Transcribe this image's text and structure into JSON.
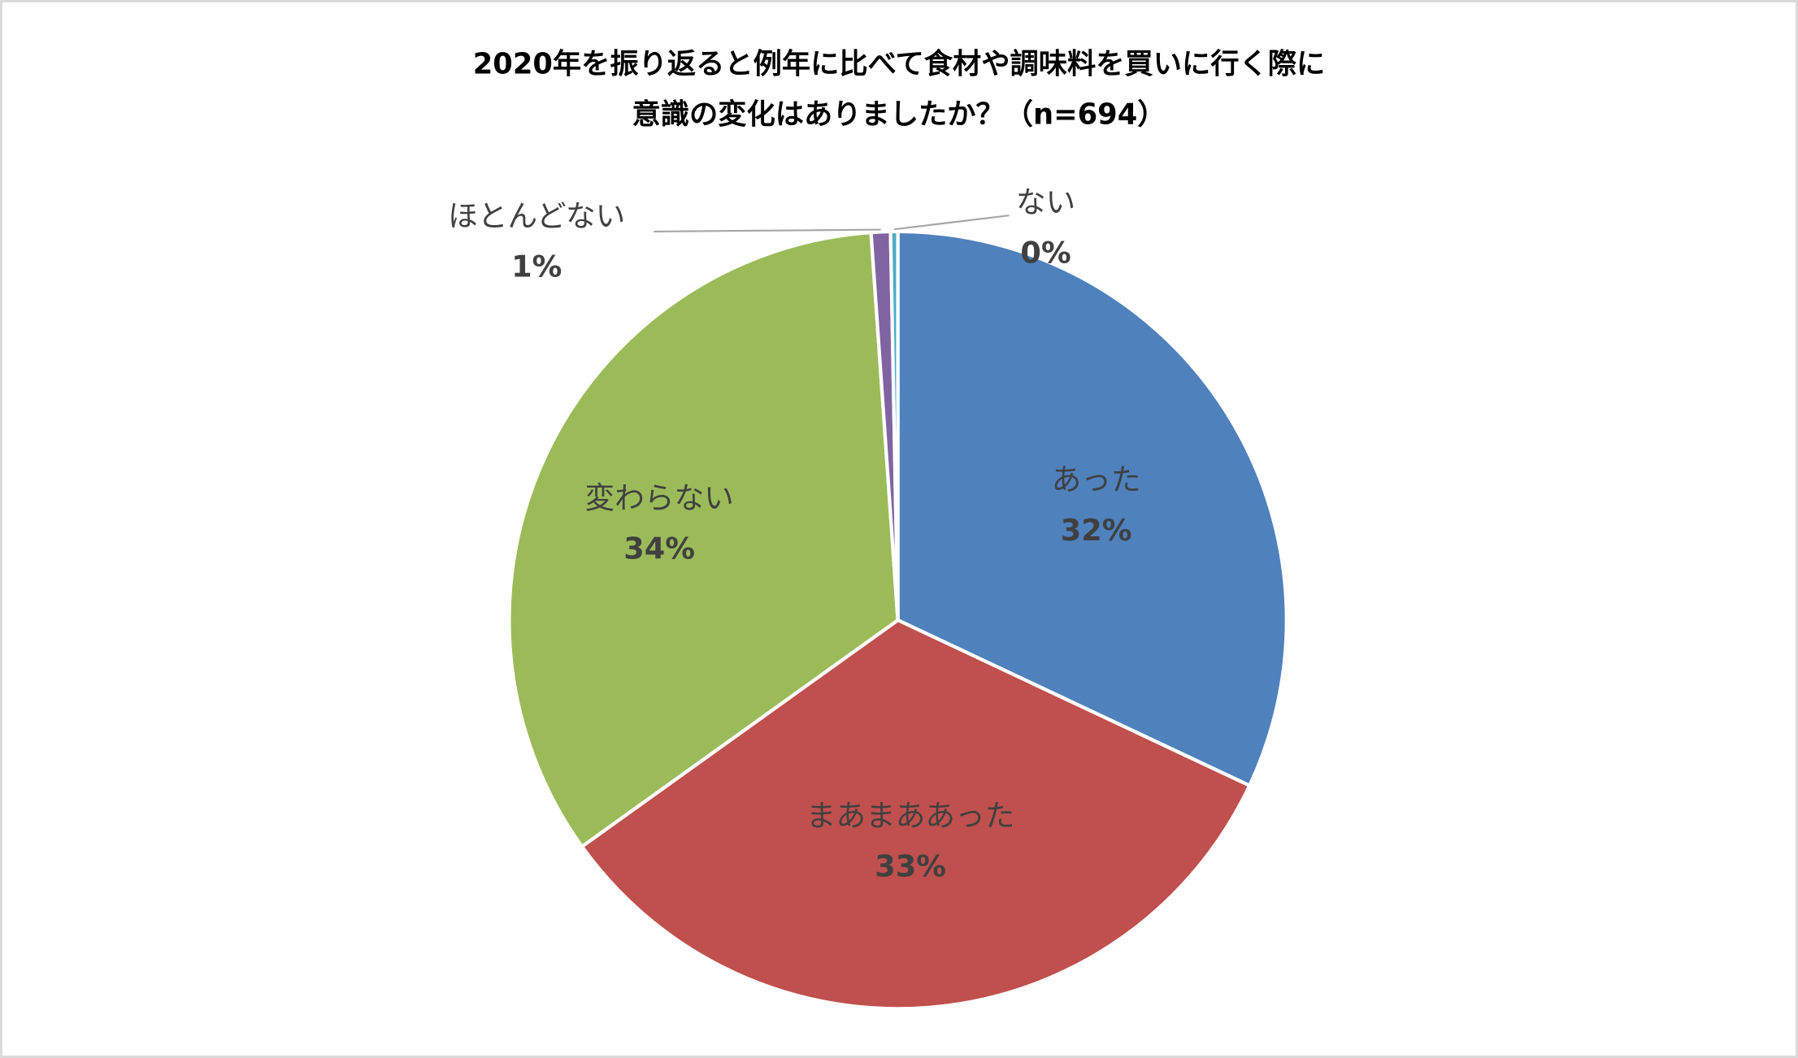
{
  "chart_data": {
    "type": "pie",
    "title": [
      "2020年を振り返ると例年に比べて食材や調味料を買いに行く際に",
      "意識の変化はありましたか？（n=694）"
    ],
    "categories": [
      "あった",
      "まあまああった",
      "変わらない",
      "ほとんどない",
      "ない"
    ],
    "values": [
      32.0,
      33.1,
      33.8,
      0.8,
      0.3
    ],
    "value_labels": [
      "32%",
      "33%",
      "34%",
      "1%",
      "0%"
    ],
    "colors": [
      "#4f81bd",
      "#c0504d",
      "#9bbb59",
      "#8064a2",
      "#4bacc6"
    ]
  }
}
